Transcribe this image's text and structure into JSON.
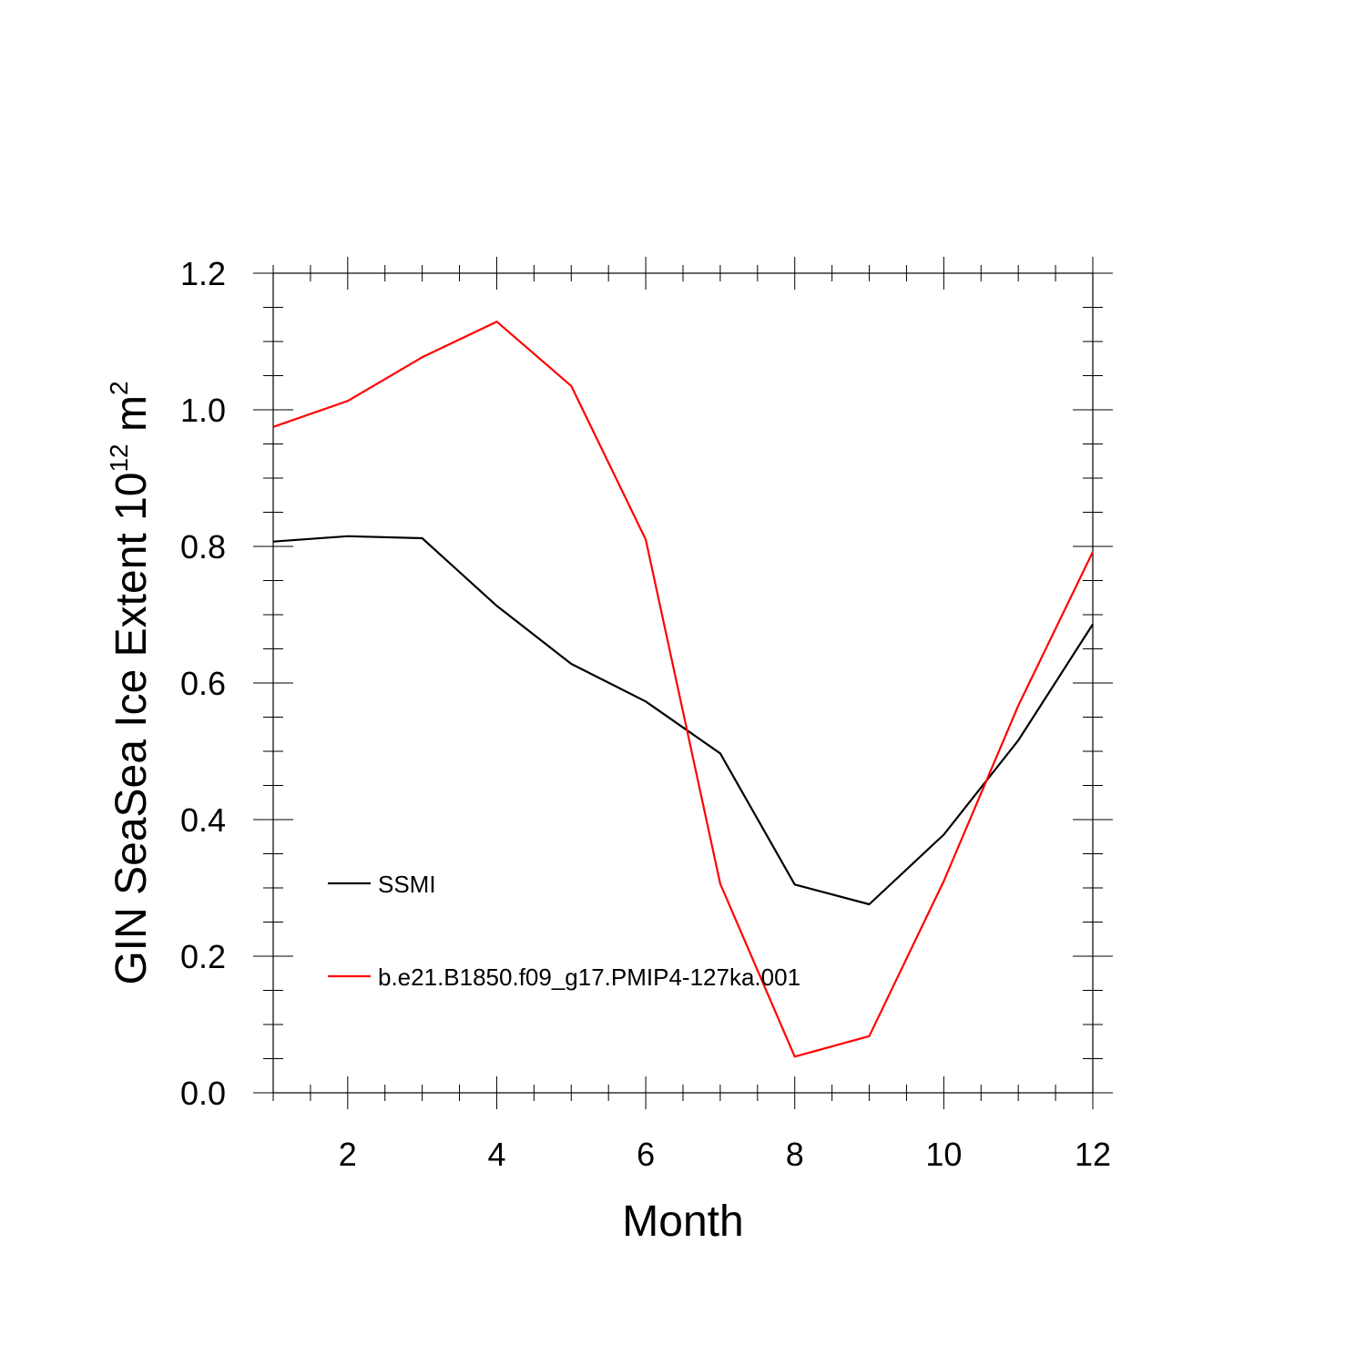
{
  "chart_data": {
    "type": "line",
    "title": "",
    "xlabel": "Month",
    "ylabel": {
      "text": "GIN SeaSea Ice Extent 10",
      "superscript": "12",
      "unit": " m",
      "unit_superscript": "2"
    },
    "xlim": [
      1,
      12
    ],
    "ylim": [
      0,
      1.2
    ],
    "x_ticks": [
      2,
      4,
      6,
      8,
      10,
      12
    ],
    "y_ticks": [
      "0.0",
      "0.2",
      "0.4",
      "0.6",
      "0.8",
      "1.0",
      "1.2"
    ],
    "grid": false,
    "legend_position": "lower-left",
    "x": [
      1,
      2,
      3,
      4,
      5,
      6,
      7,
      8,
      9,
      10,
      11,
      12
    ],
    "series": [
      {
        "name": "SSMI",
        "color": "#000000",
        "values": [
          0.807,
          0.815,
          0.812,
          0.713,
          0.628,
          0.573,
          0.497,
          0.305,
          0.276,
          0.378,
          0.516,
          0.686
        ]
      },
      {
        "name": "b.e21.B1850.f09_g17.PMIP4-127ka.001",
        "color": "#ff0000",
        "values": [
          0.975,
          1.013,
          1.077,
          1.129,
          1.035,
          0.81,
          0.306,
          0.053,
          0.083,
          0.31,
          0.567,
          0.792
        ]
      }
    ]
  }
}
